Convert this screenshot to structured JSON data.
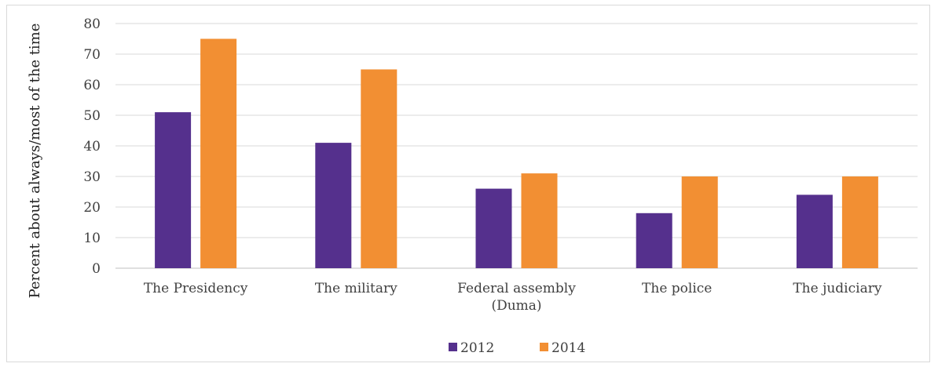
{
  "chart_data": {
    "type": "bar",
    "ylabel": "Percent about always/most of the time",
    "xlabel": "",
    "ylim": [
      0,
      80
    ],
    "yticks": [
      0,
      10,
      20,
      30,
      40,
      50,
      60,
      70,
      80
    ],
    "grid": true,
    "legend_position": "bottom",
    "categories": [
      [
        "The Presidency"
      ],
      [
        "The military"
      ],
      [
        "Federal assembly",
        "(Duma)"
      ],
      [
        "The police"
      ],
      [
        "The judiciary"
      ]
    ],
    "series": [
      {
        "name": "2012",
        "color": "#55308d",
        "values": [
          51,
          41,
          26,
          18,
          24
        ]
      },
      {
        "name": "2014",
        "color": "#f28f33",
        "values": [
          75,
          65,
          31,
          30,
          30
        ]
      }
    ]
  }
}
